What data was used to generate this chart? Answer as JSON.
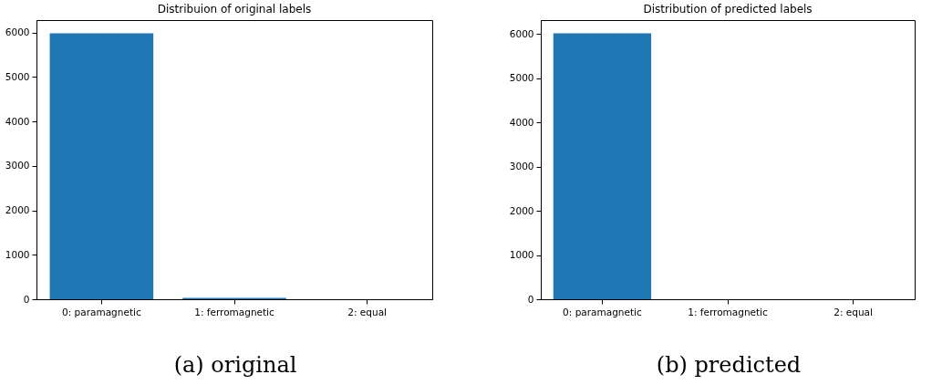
{
  "chart_data": [
    {
      "type": "bar",
      "title": "Distribuion of original labels",
      "categories": [
        "0: paramagnetic",
        "1: ferromagnetic",
        "2: equal"
      ],
      "values": [
        5980,
        30,
        0
      ],
      "color": "#1f77b4",
      "ylim": [
        0,
        6280
      ],
      "yticks": [
        0,
        1000,
        2000,
        3000,
        4000,
        5000,
        6000
      ],
      "grid": false,
      "annotations": [
        "(a) original"
      ]
    },
    {
      "type": "bar",
      "title": "Distribution of predicted labels",
      "categories": [
        "0: paramagnetic",
        "1: ferromagnetic",
        "2: equal"
      ],
      "values": [
        6010,
        0,
        0
      ],
      "color": "#1f77b4",
      "ylim": [
        0,
        6310
      ],
      "yticks": [
        0,
        1000,
        2000,
        3000,
        4000,
        5000,
        6000
      ],
      "grid": false,
      "annotations": [
        "(b) predicted"
      ]
    }
  ]
}
